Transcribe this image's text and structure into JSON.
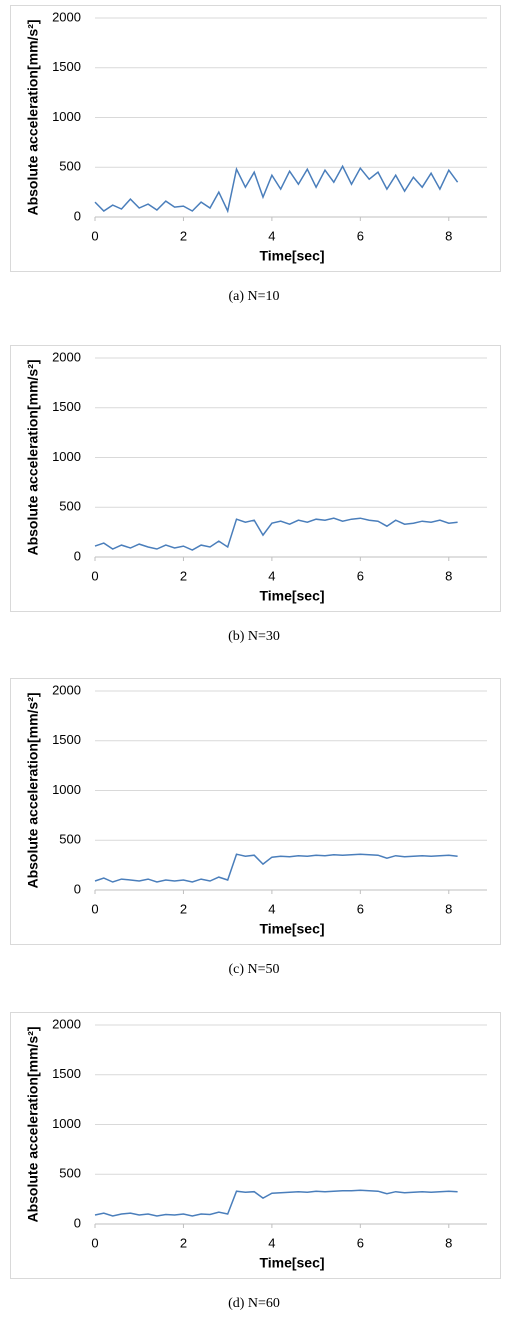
{
  "chart_data": [
    {
      "type": "line",
      "caption": "(a) N=10",
      "xlabel": "Time[sec]",
      "ylabel": "Absolute acceleration[mm/s²]",
      "x": [
        0,
        0.2,
        0.4,
        0.6,
        0.8,
        1.0,
        1.2,
        1.4,
        1.6,
        1.8,
        2.0,
        2.2,
        2.4,
        2.6,
        2.8,
        3.0,
        3.2,
        3.4,
        3.6,
        3.8,
        4.0,
        4.2,
        4.4,
        4.6,
        4.8,
        5.0,
        5.2,
        5.4,
        5.6,
        5.8,
        6.0,
        6.2,
        6.4,
        6.6,
        6.8,
        7.0,
        7.2,
        7.4,
        7.6,
        7.8,
        8.0,
        8.2
      ],
      "values": [
        150,
        60,
        120,
        80,
        180,
        90,
        130,
        70,
        160,
        100,
        110,
        60,
        150,
        90,
        250,
        60,
        480,
        300,
        450,
        200,
        420,
        280,
        460,
        330,
        480,
        300,
        470,
        350,
        510,
        330,
        490,
        380,
        450,
        280,
        420,
        260,
        400,
        300,
        440,
        280,
        470,
        350
      ],
      "color": "#4a7ebb",
      "xlim": [
        0,
        9
      ],
      "xticks": [
        0,
        2,
        4,
        6,
        8
      ],
      "ylim": [
        0,
        2000
      ],
      "yticks": [
        0,
        500,
        1000,
        1500,
        2000
      ],
      "grid": true
    },
    {
      "type": "line",
      "caption": "(b) N=30",
      "xlabel": "Time[sec]",
      "ylabel": "Absolute acceleration[mm/s²]",
      "x": [
        0,
        0.2,
        0.4,
        0.6,
        0.8,
        1.0,
        1.2,
        1.4,
        1.6,
        1.8,
        2.0,
        2.2,
        2.4,
        2.6,
        2.8,
        3.0,
        3.2,
        3.4,
        3.6,
        3.8,
        4.0,
        4.2,
        4.4,
        4.6,
        4.8,
        5.0,
        5.2,
        5.4,
        5.6,
        5.8,
        6.0,
        6.2,
        6.4,
        6.6,
        6.8,
        7.0,
        7.2,
        7.4,
        7.6,
        7.8,
        8.0,
        8.2
      ],
      "values": [
        110,
        140,
        80,
        120,
        90,
        130,
        100,
        80,
        120,
        90,
        110,
        70,
        120,
        100,
        160,
        100,
        380,
        350,
        370,
        220,
        340,
        360,
        330,
        370,
        350,
        380,
        370,
        390,
        360,
        380,
        390,
        370,
        360,
        310,
        370,
        330,
        340,
        360,
        350,
        370,
        340,
        350
      ],
      "color": "#4a7ebb",
      "xlim": [
        0,
        9
      ],
      "xticks": [
        0,
        2,
        4,
        6,
        8
      ],
      "ylim": [
        0,
        2000
      ],
      "yticks": [
        0,
        500,
        1000,
        1500,
        2000
      ],
      "grid": true
    },
    {
      "type": "line",
      "caption": "(c) N=50",
      "xlabel": "Time[sec]",
      "ylabel": "Absolute acceleration[mm/s²]",
      "x": [
        0,
        0.2,
        0.4,
        0.6,
        0.8,
        1.0,
        1.2,
        1.4,
        1.6,
        1.8,
        2.0,
        2.2,
        2.4,
        2.6,
        2.8,
        3.0,
        3.2,
        3.4,
        3.6,
        3.8,
        4.0,
        4.2,
        4.4,
        4.6,
        4.8,
        5.0,
        5.2,
        5.4,
        5.6,
        5.8,
        6.0,
        6.2,
        6.4,
        6.6,
        6.8,
        7.0,
        7.2,
        7.4,
        7.6,
        7.8,
        8.0,
        8.2
      ],
      "values": [
        90,
        120,
        80,
        110,
        100,
        90,
        110,
        80,
        100,
        90,
        100,
        80,
        110,
        90,
        130,
        100,
        360,
        340,
        350,
        260,
        330,
        340,
        335,
        345,
        340,
        350,
        345,
        355,
        350,
        355,
        360,
        355,
        350,
        320,
        345,
        335,
        340,
        345,
        340,
        345,
        350,
        340
      ],
      "color": "#4a7ebb",
      "xlim": [
        0,
        9
      ],
      "xticks": [
        0,
        2,
        4,
        6,
        8
      ],
      "ylim": [
        0,
        2000
      ],
      "yticks": [
        0,
        500,
        1000,
        1500,
        2000
      ],
      "grid": true
    },
    {
      "type": "line",
      "caption": "(d) N=60",
      "xlabel": "Time[sec]",
      "ylabel": "Absolute acceleration[mm/s²]",
      "x": [
        0,
        0.2,
        0.4,
        0.6,
        0.8,
        1.0,
        1.2,
        1.4,
        1.6,
        1.8,
        2.0,
        2.2,
        2.4,
        2.6,
        2.8,
        3.0,
        3.2,
        3.4,
        3.6,
        3.8,
        4.0,
        4.2,
        4.4,
        4.6,
        4.8,
        5.0,
        5.2,
        5.4,
        5.6,
        5.8,
        6.0,
        6.2,
        6.4,
        6.6,
        6.8,
        7.0,
        7.2,
        7.4,
        7.6,
        7.8,
        8.0,
        8.2
      ],
      "values": [
        90,
        110,
        80,
        100,
        110,
        90,
        100,
        80,
        95,
        90,
        100,
        80,
        100,
        95,
        120,
        100,
        330,
        320,
        325,
        260,
        310,
        315,
        320,
        325,
        320,
        330,
        325,
        330,
        335,
        335,
        340,
        335,
        330,
        305,
        325,
        315,
        320,
        325,
        320,
        325,
        330,
        325
      ],
      "color": "#4a7ebb",
      "xlim": [
        0,
        9
      ],
      "xticks": [
        0,
        2,
        4,
        6,
        8
      ],
      "ylim": [
        0,
        2000
      ],
      "yticks": [
        0,
        500,
        1000,
        1500,
        2000
      ],
      "grid": true
    }
  ]
}
